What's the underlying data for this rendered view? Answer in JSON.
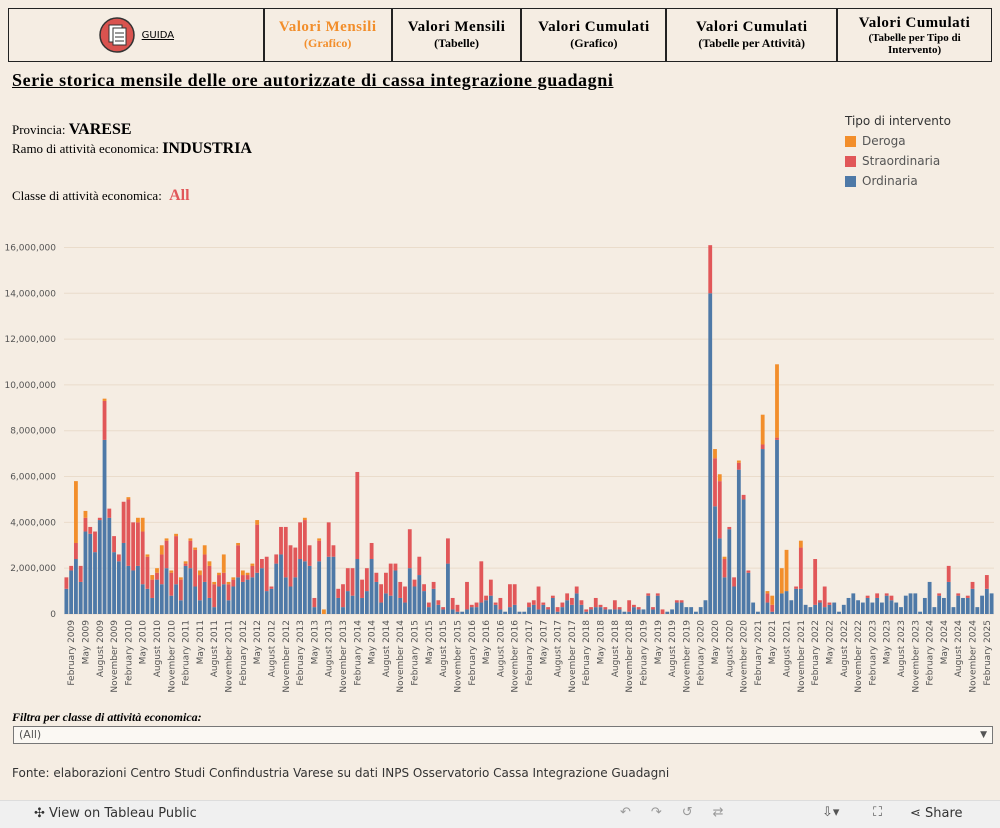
{
  "guide": "GUIDA",
  "tabs": [
    {
      "title": "Valori Mensili",
      "subtitle": "(Grafico)"
    },
    {
      "title": "Valori Mensili",
      "subtitle": "(Tabelle)"
    },
    {
      "title": "Valori Cumulati",
      "subtitle": "(Grafico)"
    },
    {
      "title": "Valori Cumulati",
      "subtitle": "(Tabelle per Attività)"
    },
    {
      "title": "Valori Cumulati",
      "subtitle": "(Tabelle per Tipo di Intervento)"
    }
  ],
  "header": {
    "title": "Serie storica mensile delle ore autorizzate di cassa integrazione guadagni",
    "provincia_label": "Provincia:",
    "provincia": "VARESE",
    "ramo_label": "Ramo di attività economica:",
    "ramo": "INDUSTRIA",
    "classe_label": "Classe di attività economica:",
    "classe": "All"
  },
  "chart_data": {
    "type": "stacked-bar",
    "legend_title": "Tipo di intervento",
    "categories": [
      null,
      "February 2009",
      null,
      null,
      "May 2009",
      null,
      null,
      "August 2009",
      null,
      null,
      "November 2009",
      null,
      null,
      "February 2010",
      null,
      null,
      "May 2010",
      null,
      null,
      "August 2010",
      null,
      null,
      "November 2010",
      null,
      null,
      "February 2011",
      null,
      null,
      "May 2011",
      null,
      null,
      "August 2011",
      null,
      null,
      "November 2011",
      null,
      null,
      "February 2012",
      null,
      null,
      "May 2012",
      null,
      null,
      "August 2012",
      null,
      null,
      "November 2012",
      null,
      null,
      "February 2013",
      null,
      null,
      "May 2013",
      null,
      null,
      "August 2013",
      null,
      null,
      "November 2013",
      null,
      null,
      "February 2014",
      null,
      null,
      "May 2014",
      null,
      null,
      "August 2014",
      null,
      null,
      "November 2014",
      null,
      null,
      "February 2015",
      null,
      null,
      "May 2015",
      null,
      null,
      "August 2015",
      null,
      null,
      "November 2015",
      null,
      null,
      "February 2016",
      null,
      null,
      "May 2016",
      null,
      null,
      "August 2016",
      null,
      null,
      "November 2016",
      null,
      null,
      "February 2017",
      null,
      null,
      "May 2017",
      null,
      null,
      "August 2017",
      null,
      null,
      "November 2017",
      null,
      null,
      "February 2018",
      null,
      null,
      "May 2018",
      null,
      null,
      "August 2018",
      null,
      null,
      "November 2018",
      null,
      null,
      "February 2019",
      null,
      null,
      "May 2019",
      null,
      null,
      "August 2019",
      null,
      null,
      "November 2019",
      null,
      null,
      "February 2020",
      null,
      null,
      "May 2020",
      null,
      null,
      "August 2020",
      null,
      null,
      "November 2020",
      null,
      null,
      "February 2021",
      null,
      null,
      "May 2021",
      null,
      null,
      "August 2021",
      null,
      null,
      "November 2021",
      null,
      null,
      "February 2022",
      null,
      null,
      "May 2022",
      null,
      null,
      "August 2022",
      null,
      null,
      "November 2022",
      null,
      null,
      "February 2023",
      null,
      null,
      "May 2023",
      null,
      null,
      "August 2023",
      null,
      null,
      "November 2023",
      null,
      null,
      "February 2024",
      null,
      null,
      "May 2024",
      null,
      null,
      "August 2024",
      null,
      null,
      "November 2024",
      null,
      null,
      "February 2025",
      null
    ],
    "series": [
      {
        "name": "Deroga",
        "color": "#f28e2b",
        "values": [
          0,
          0,
          2700000,
          0,
          300000,
          0,
          0,
          0,
          100000,
          0,
          0,
          0,
          0,
          100000,
          0,
          200000,
          600000,
          100000,
          200000,
          200000,
          400000,
          100000,
          100000,
          100000,
          100000,
          100000,
          100000,
          100000,
          200000,
          400000,
          200000,
          100000,
          100000,
          800000,
          100000,
          100000,
          100000,
          200000,
          100000,
          100000,
          200000,
          0,
          0,
          0,
          0,
          0,
          0,
          0,
          0,
          0,
          100000,
          0,
          0,
          100000,
          200000,
          0,
          0,
          0,
          0,
          0,
          0,
          0,
          0,
          0,
          0,
          0,
          0,
          0,
          0,
          0,
          0,
          0,
          0,
          0,
          0,
          0,
          0,
          0,
          0,
          0,
          0,
          0,
          0,
          0,
          0,
          0,
          0,
          0,
          0,
          0,
          0,
          0,
          0,
          0,
          0,
          0,
          0,
          0,
          0,
          0,
          0,
          0,
          0,
          0,
          0,
          0,
          0,
          0,
          0,
          0,
          0,
          0,
          0,
          0,
          0,
          0,
          0,
          0,
          0,
          0,
          0,
          0,
          0,
          0,
          0,
          0,
          0,
          0,
          0,
          0,
          0,
          0,
          0,
          0,
          0,
          0,
          400000,
          300000,
          100000,
          0,
          0,
          100000,
          0,
          0,
          0,
          0,
          1300000,
          100000,
          400000,
          3200000,
          1100000,
          1800000,
          0,
          0,
          300000,
          0,
          0,
          0,
          0,
          0,
          0,
          0,
          0,
          0,
          0,
          0,
          0,
          0,
          0,
          0,
          0,
          0,
          0,
          0,
          0,
          0,
          0,
          0,
          0,
          0,
          0,
          0,
          0,
          0,
          0,
          0,
          0,
          0,
          0,
          0,
          0,
          0,
          0,
          0,
          0
        ]
      },
      {
        "name": "Straordinaria",
        "color": "#e15759",
        "values": [
          500000,
          200000,
          700000,
          700000,
          600000,
          300000,
          900000,
          100000,
          1700000,
          400000,
          700000,
          300000,
          1800000,
          2900000,
          2100000,
          1900000,
          2300000,
          1400000,
          800000,
          300000,
          1300000,
          1200000,
          1000000,
          2100000,
          900000,
          100000,
          1200000,
          1600000,
          1100000,
          1200000,
          1400000,
          1000000,
          500000,
          500000,
          700000,
          300000,
          1400000,
          300000,
          200000,
          500000,
          2100000,
          400000,
          1500000,
          100000,
          400000,
          1200000,
          2200000,
          1800000,
          1300000,
          1600000,
          1800000,
          900000,
          400000,
          900000,
          0,
          1500000,
          500000,
          400000,
          1000000,
          1000000,
          1200000,
          3800000,
          800000,
          1000000,
          700000,
          400000,
          800000,
          900000,
          1400000,
          300000,
          700000,
          700000,
          1700000,
          300000,
          800000,
          300000,
          200000,
          300000,
          200000,
          100000,
          1100000,
          500000,
          300000,
          0,
          1200000,
          100000,
          200000,
          1800000,
          200000,
          700000,
          100000,
          500000,
          0,
          1000000,
          900000,
          0,
          0,
          200000,
          200000,
          1000000,
          100000,
          100000,
          100000,
          200000,
          200000,
          300000,
          300000,
          300000,
          200000,
          100000,
          100000,
          400000,
          100000,
          100000,
          0,
          400000,
          100000,
          0,
          500000,
          100000,
          100000,
          0,
          100000,
          100000,
          100000,
          200000,
          0,
          0,
          100000,
          100000,
          0,
          0,
          0,
          0,
          0,
          2100000,
          2100000,
          2500000,
          800000,
          100000,
          400000,
          300000,
          200000,
          100000,
          0,
          0,
          200000,
          400000,
          300000,
          100000,
          0,
          0,
          0,
          100000,
          1800000,
          0,
          0,
          2000000,
          100000,
          900000,
          100000,
          0,
          0,
          0,
          0,
          0,
          0,
          0,
          100000,
          0,
          200000,
          0,
          100000,
          200000,
          0,
          0,
          0,
          0,
          0,
          0,
          0,
          0,
          0,
          100000,
          0,
          700000,
          0,
          100000,
          0,
          100000,
          300000,
          0,
          0,
          600000,
          0
        ]
      },
      {
        "name": "Ordinaria",
        "color": "#4e79a7",
        "values": [
          1100000,
          1900000,
          2400000,
          1400000,
          3600000,
          3500000,
          2700000,
          4100000,
          7600000,
          4200000,
          2700000,
          2300000,
          3100000,
          2100000,
          1900000,
          2100000,
          1300000,
          1100000,
          700000,
          1500000,
          1300000,
          2000000,
          800000,
          1300000,
          600000,
          2100000,
          2000000,
          1200000,
          600000,
          1400000,
          700000,
          300000,
          1200000,
          1300000,
          600000,
          1200000,
          1600000,
          1400000,
          1500000,
          1600000,
          1800000,
          2000000,
          1000000,
          1100000,
          2200000,
          2600000,
          1600000,
          1200000,
          1600000,
          2400000,
          2300000,
          2100000,
          300000,
          2300000,
          0,
          2500000,
          2500000,
          700000,
          300000,
          1000000,
          800000,
          2400000,
          700000,
          1000000,
          2400000,
          1400000,
          500000,
          900000,
          800000,
          1900000,
          700000,
          500000,
          2000000,
          1200000,
          1700000,
          1000000,
          300000,
          1100000,
          400000,
          200000,
          2200000,
          200000,
          100000,
          100000,
          200000,
          300000,
          300000,
          500000,
          600000,
          800000,
          400000,
          200000,
          100000,
          300000,
          400000,
          100000,
          100000,
          300000,
          400000,
          200000,
          400000,
          200000,
          700000,
          100000,
          300000,
          600000,
          400000,
          900000,
          400000,
          100000,
          200000,
          300000,
          300000,
          200000,
          200000,
          200000,
          200000,
          100000,
          100000,
          300000,
          200000,
          200000,
          800000,
          200000,
          800000,
          0,
          100000,
          200000,
          500000,
          500000,
          300000,
          300000,
          100000,
          300000,
          600000,
          14000000,
          4700000,
          3300000,
          1600000,
          3700000,
          1200000,
          6300000,
          5000000,
          1800000,
          500000,
          100000,
          7200000,
          500000,
          100000,
          7600000,
          900000,
          1000000,
          600000,
          1100000,
          1100000,
          400000,
          300000,
          400000,
          500000,
          300000,
          400000,
          500000,
          100000,
          400000,
          700000,
          900000,
          600000,
          500000,
          700000,
          500000,
          700000,
          500000,
          800000,
          600000,
          500000,
          300000,
          800000,
          900000,
          900000,
          100000,
          700000,
          1400000,
          300000,
          800000,
          700000,
          1400000,
          300000,
          800000,
          700000,
          700000,
          1100000,
          300000,
          800000,
          1100000,
          900000
        ]
      }
    ],
    "ylim": [
      0,
      16500000
    ],
    "yticks": [
      0,
      {
        "value": 2000000,
        "label": "2,000,000"
      },
      {
        "value": 4000000,
        "label": "4,000,000"
      },
      {
        "value": 6000000,
        "label": "6,000,000"
      },
      {
        "value": 8000000,
        "label": "8,000,000"
      },
      {
        "value": 10000000,
        "label": "10,000,000"
      },
      {
        "value": 12000000,
        "label": "12,000,000"
      },
      {
        "value": 14000000,
        "label": "14,000,000"
      },
      {
        "value": 16000000,
        "label": "16,000,000"
      }
    ],
    "grid": true
  },
  "filter": {
    "label": "Filtra per classe di attività economica:",
    "value": "(All)"
  },
  "source": "Fonte: elaborazioni Centro Studi Confindustria Varese su dati INPS Osservatorio Cassa Integrazione Guadagni",
  "toolbar": {
    "view": "View on Tableau Public",
    "share": "Share"
  }
}
